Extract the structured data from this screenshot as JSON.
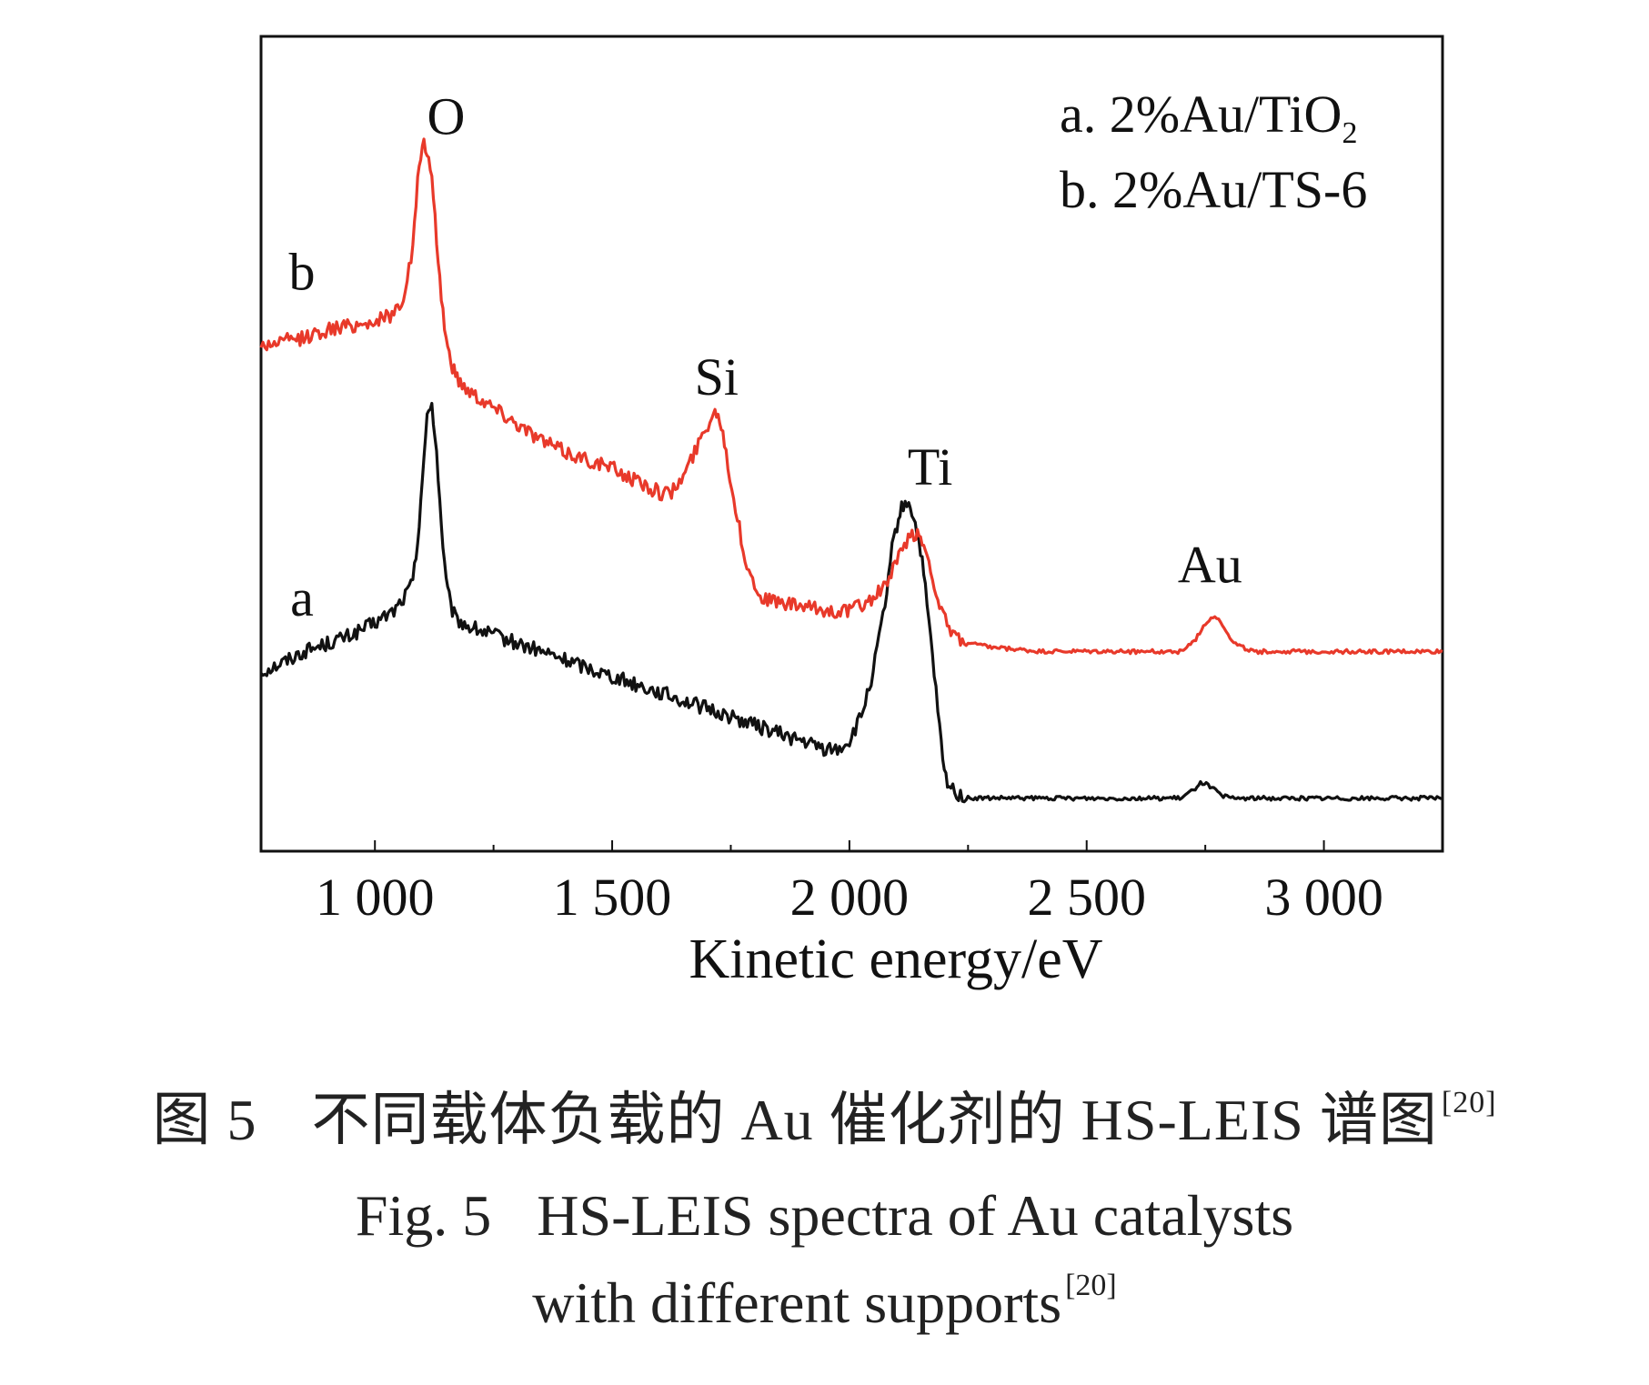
{
  "chart_data": {
    "type": "line",
    "xlabel": "Kinetic energy/eV",
    "ylabel": "",
    "xlim": [
      760,
      3250
    ],
    "ylim": [
      0,
      100
    ],
    "x_ticks": [
      1000,
      1500,
      2000,
      2500,
      3000
    ],
    "x_tick_labels": [
      "1 000",
      "1 500",
      "2 000",
      "2 500",
      "3 000"
    ],
    "y_ticks_shown": false,
    "grid": false,
    "legend_position": "top-right",
    "legend": [
      {
        "prefix": "a. 2%Au/TiO",
        "sub": "2"
      },
      {
        "prefix": "b. 2%Au/TS-6",
        "sub": ""
      }
    ],
    "series": [
      {
        "name": "a",
        "color": "#111111",
        "x": [
          760,
          800,
          850,
          900,
          950,
          1000,
          1040,
          1060,
          1080,
          1090,
          1100,
          1110,
          1120,
          1130,
          1140,
          1150,
          1160,
          1170,
          1200,
          1250,
          1300,
          1350,
          1400,
          1450,
          1500,
          1550,
          1600,
          1650,
          1700,
          1750,
          1800,
          1850,
          1900,
          1950,
          1975,
          2000,
          2025,
          2050,
          2075,
          2090,
          2100,
          2110,
          2125,
          2135,
          2150,
          2160,
          2175,
          2190,
          2200,
          2210,
          2230,
          2250,
          2300,
          2400,
          2500,
          2600,
          2650,
          2700,
          2725,
          2740,
          2760,
          2780,
          2800,
          2850,
          2900,
          3000,
          3100,
          3200,
          3250
        ],
        "y": [
          22,
          23,
          24.5,
          25.5,
          26.5,
          28,
          29.5,
          31,
          33,
          38,
          46,
          53,
          55,
          49,
          40,
          33,
          30,
          28.5,
          27.5,
          26.5,
          25.5,
          24.5,
          23.5,
          22.5,
          21.5,
          20.5,
          19.5,
          18.5,
          17.5,
          16.5,
          15.5,
          14.5,
          13.5,
          12.5,
          12.5,
          13.5,
          16.5,
          22,
          30,
          37,
          40,
          42,
          43,
          41,
          37,
          32,
          24,
          15,
          9.5,
          8,
          7,
          6.5,
          6.5,
          6.5,
          6.5,
          6.5,
          6.5,
          6.5,
          7.5,
          8.5,
          8,
          7,
          6.5,
          6.5,
          6.5,
          6.5,
          6.5,
          6.5,
          6.5
        ]
      },
      {
        "name": "b",
        "color": "#e8392a",
        "x": [
          760,
          800,
          850,
          900,
          950,
          1000,
          1040,
          1060,
          1080,
          1090,
          1100,
          1110,
          1120,
          1130,
          1140,
          1150,
          1160,
          1170,
          1180,
          1200,
          1250,
          1300,
          1350,
          1400,
          1450,
          1500,
          1550,
          1600,
          1625,
          1650,
          1670,
          1690,
          1710,
          1720,
          1730,
          1740,
          1760,
          1780,
          1800,
          1820,
          1850,
          1900,
          1950,
          2000,
          2050,
          2080,
          2100,
          2120,
          2140,
          2150,
          2160,
          2175,
          2190,
          2210,
          2230,
          2250,
          2300,
          2400,
          2500,
          2600,
          2650,
          2700,
          2730,
          2750,
          2770,
          2790,
          2810,
          2850,
          2900,
          3000,
          3100,
          3200,
          3250
        ],
        "y": [
          62,
          62.5,
          63,
          64,
          64.5,
          65,
          66,
          68,
          74,
          82,
          87,
          86,
          82,
          75,
          68,
          63,
          60,
          58.5,
          57.5,
          56.5,
          54.5,
          52.5,
          50.5,
          49,
          48,
          47,
          45.5,
          44,
          44,
          46,
          48.5,
          51,
          53.5,
          54,
          52.5,
          49,
          42,
          36,
          32.5,
          31,
          30.5,
          30,
          29.5,
          29.5,
          31,
          33,
          35.5,
          38,
          39,
          38.5,
          37,
          34,
          30,
          27,
          26,
          25.5,
          25,
          24.5,
          24.5,
          24.5,
          24.5,
          24.5,
          26,
          28,
          29,
          27.5,
          25.5,
          24.5,
          24.5,
          24.5,
          24.5,
          24.5,
          24.5
        ]
      }
    ],
    "curve_labels": [
      {
        "series": "b",
        "text": "b"
      },
      {
        "series": "a",
        "text": "a"
      }
    ],
    "annotations": [
      {
        "text": "O",
        "x": 1150,
        "y": 88
      },
      {
        "text": "Si",
        "x": 1720,
        "y": 56
      },
      {
        "text": "Ti",
        "x": 2170,
        "y": 45
      },
      {
        "text": "Au",
        "x": 2760,
        "y": 33
      }
    ]
  },
  "caption": {
    "cn_fig": "图 5",
    "cn_text": "不同载体负载的 Au 催化剂的 HS-LEIS 谱图",
    "cn_ref": "[20]",
    "en_fig": "Fig. 5",
    "en_text_line1": "HS-LEIS spectra of Au catalysts",
    "en_text_line2": "with different supports",
    "en_ref": "[20]"
  }
}
